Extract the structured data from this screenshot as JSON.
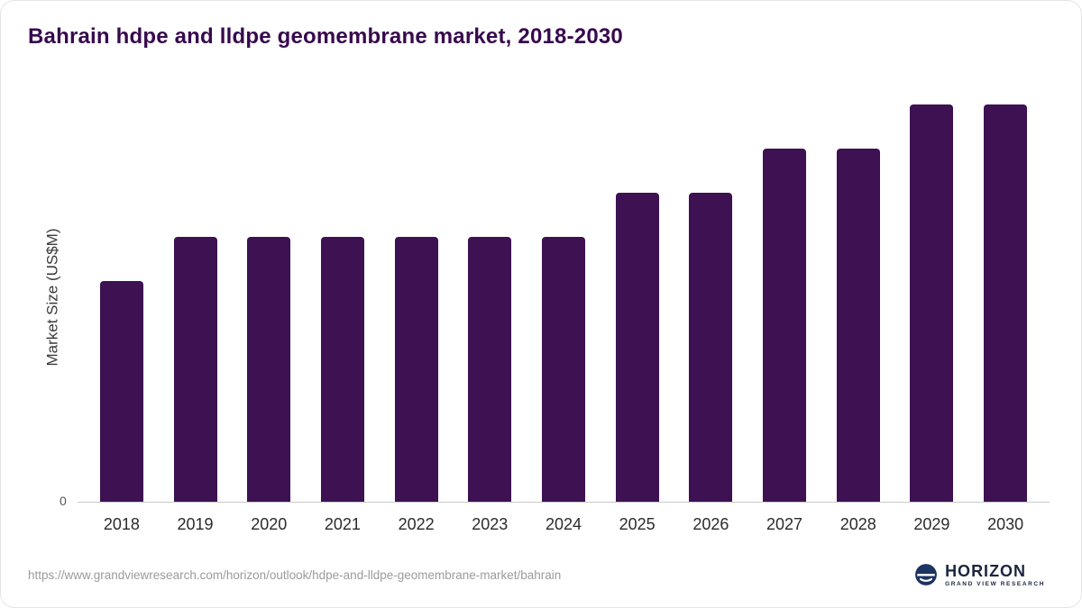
{
  "chart_data": {
    "type": "bar",
    "title": "Bahrain hdpe and lldpe geomembrane market, 2018-2030",
    "categories": [
      "2018",
      "2019",
      "2020",
      "2021",
      "2022",
      "2023",
      "2024",
      "2025",
      "2026",
      "2027",
      "2028",
      "2029",
      "2030"
    ],
    "values": [
      5,
      6,
      6,
      6,
      6,
      6,
      6,
      7,
      7,
      8,
      8,
      9,
      9
    ],
    "xlabel": "",
    "ylabel": "Market Size (US$M)",
    "ylim": [
      0,
      9.3
    ],
    "y_tick_labels": [
      "0"
    ],
    "grid": false,
    "legend": "none",
    "bar_color": "#3d1152"
  },
  "axis": {
    "zero_label": "0"
  },
  "footer": {
    "url": "https://www.grandviewresearch.com/horizon/outlook/hdpe-and-lldpe-geomembrane-market/bahrain",
    "logo_text": "HORIZON",
    "logo_subtext": "GRAND VIEW RESEARCH"
  },
  "colors": {
    "bar": "#3d1152",
    "title": "#38094e",
    "logo_navy": "#1d3461"
  }
}
